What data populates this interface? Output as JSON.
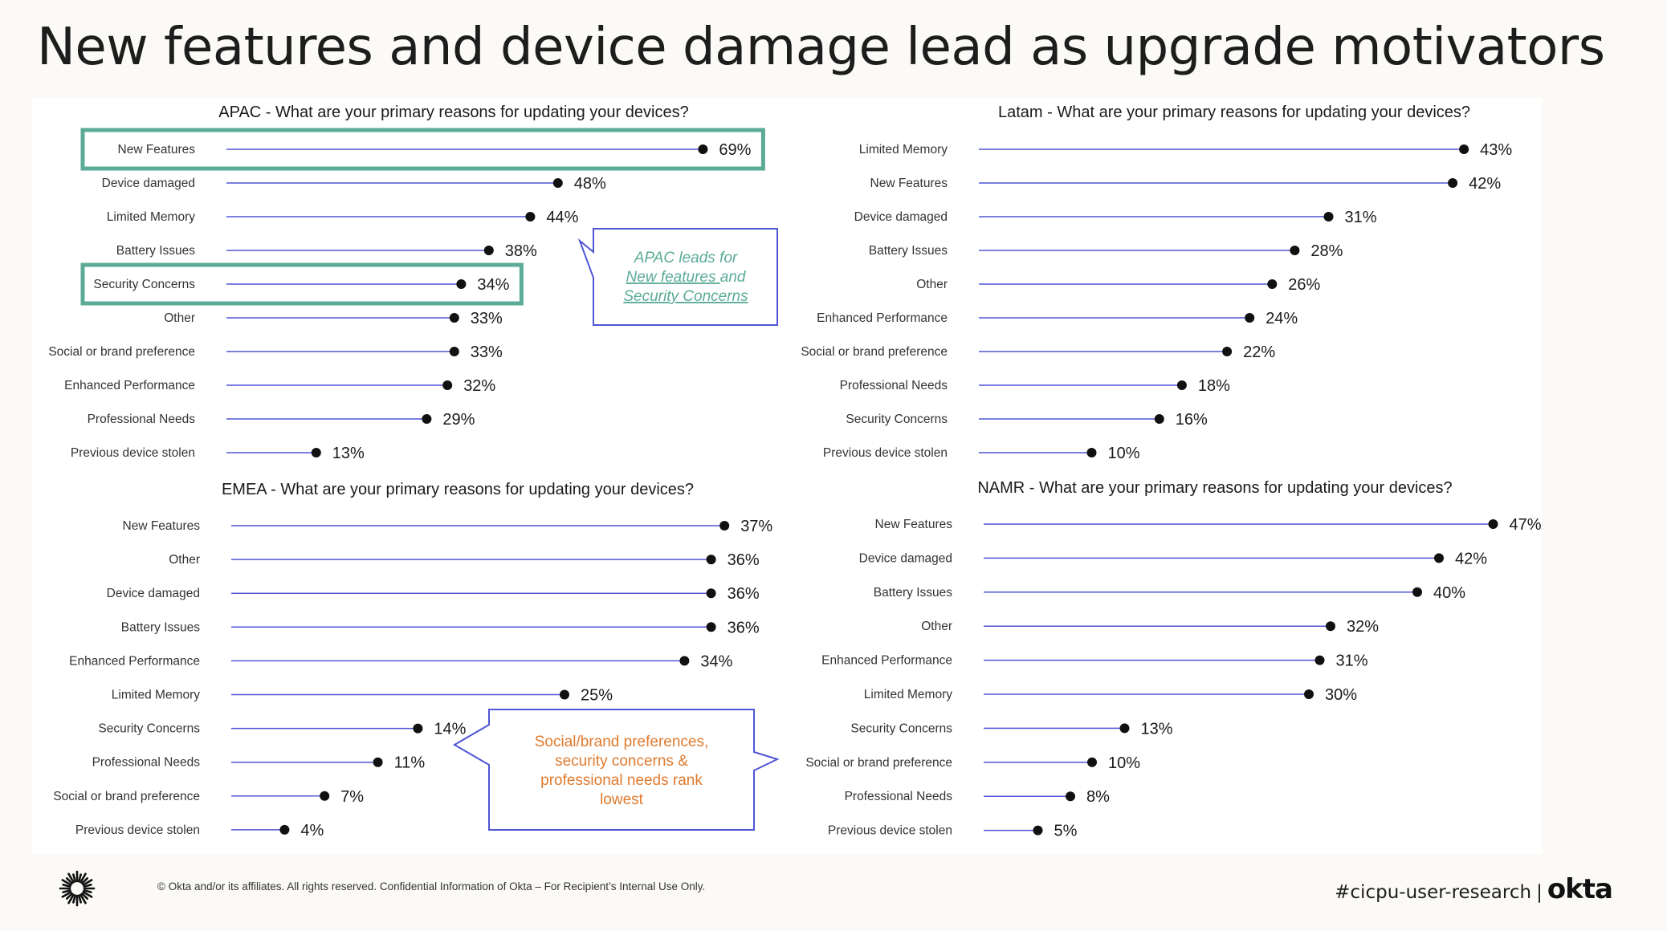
{
  "slide": {
    "title": "New features and device damage lead as upgrade motivators",
    "footer": {
      "copyright": "© Okta and/or its affiliates. All rights reserved. Confidential Information of Okta – For Recipient’s Internal Use Only.",
      "hashtag": "#cicpu-user-research",
      "separator": "|",
      "brand": "okta"
    },
    "colors": {
      "stem": "#4f55d6",
      "highlight_box": "#5bab97",
      "callout_border": "#4f55d6",
      "apac_callout_text": "#5bab97",
      "emea_callout_text": "#e07a2e"
    }
  },
  "callouts": {
    "apac": {
      "line1": "APAC leads for",
      "line2_underlined": "New features ",
      "line2_rest": "and",
      "line3": "Security Concerns"
    },
    "emea": {
      "lines": [
        "Social/brand preferences,",
        "security concerns &",
        "professional needs rank",
        "lowest"
      ]
    }
  },
  "chart_data": [
    {
      "type": "lollipop",
      "region": "APAC",
      "title": "APAC - What are your primary reasons for updating your devices?",
      "categories": [
        "New Features",
        "Device damaged",
        "Limited Memory",
        "Battery Issues",
        "Security Concerns",
        "Other",
        "Social or brand preference",
        "Enhanced Performance",
        "Professional Needs",
        "Previous device stolen"
      ],
      "values": [
        69,
        48,
        44,
        38,
        34,
        33,
        33,
        32,
        29,
        13
      ],
      "unit": "%",
      "highlighted": [
        "New Features",
        "Security Concerns"
      ]
    },
    {
      "type": "lollipop",
      "region": "Latam",
      "title": "Latam - What are your primary reasons for updating your devices?",
      "categories": [
        "Limited Memory",
        "New Features",
        "Device damaged",
        "Battery Issues",
        "Other",
        "Enhanced Performance",
        "Social or brand preference",
        "Professional Needs",
        "Security Concerns",
        "Previous device stolen"
      ],
      "values": [
        43,
        42,
        31,
        28,
        26,
        24,
        22,
        18,
        16,
        10
      ],
      "unit": "%",
      "highlighted": []
    },
    {
      "type": "lollipop",
      "region": "EMEA",
      "title": "EMEA - What are your primary reasons for updating your devices?",
      "categories": [
        "New Features",
        "Other",
        "Device damaged",
        "Battery Issues",
        "Enhanced Performance",
        "Limited Memory",
        "Security Concerns",
        "Professional Needs",
        "Social or brand preference",
        "Previous device stolen"
      ],
      "values": [
        37,
        36,
        36,
        36,
        34,
        25,
        14,
        11,
        7,
        4
      ],
      "unit": "%",
      "highlighted": []
    },
    {
      "type": "lollipop",
      "region": "NAMR",
      "title": "NAMR - What are your primary reasons for updating your devices?",
      "categories": [
        "New Features",
        "Device damaged",
        "Battery Issues",
        "Other",
        "Enhanced Performance",
        "Limited Memory",
        "Security Concerns",
        "Social or brand preference",
        "Professional Needs",
        "Previous device stolen"
      ],
      "values": [
        47,
        42,
        40,
        32,
        31,
        30,
        13,
        10,
        8,
        5
      ],
      "unit": "%",
      "highlighted": []
    }
  ]
}
